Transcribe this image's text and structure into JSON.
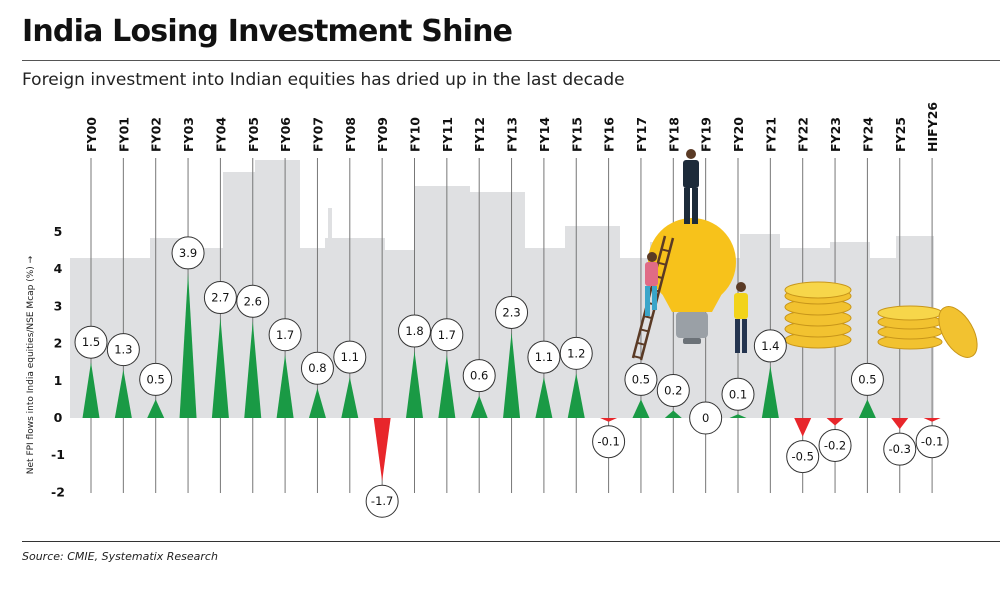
{
  "title": "India Losing Investment Shine",
  "subtitle": "Foreign investment into Indian equities has dried up in the last decade",
  "source": "Source: CMIE, Systematix Research",
  "chart_data": {
    "type": "bar",
    "ylabel": "Net FPI flows into India equities/NSE Mcap (%)",
    "ylabel_arrow": "→",
    "ylim": [
      -2,
      5
    ],
    "yticks": [
      -2,
      -1,
      0,
      1,
      2,
      3,
      4,
      5
    ],
    "yticklabels": [
      "-2",
      "-1",
      "0",
      "1",
      "2",
      "3",
      "4",
      "5"
    ],
    "categories": [
      "FY00",
      "FY01",
      "FY02",
      "FY03",
      "FY04",
      "FY05",
      "FY06",
      "FY07",
      "FY08",
      "FY09",
      "FY10",
      "FY11",
      "FY12",
      "FY13",
      "FY14",
      "FY15",
      "FY16",
      "FY17",
      "FY18",
      "FY19",
      "FY20",
      "FY21",
      "FY22",
      "FY23",
      "FY24",
      "FY25",
      "HIFY26"
    ],
    "values": [
      1.5,
      1.3,
      0.5,
      3.9,
      2.7,
      2.6,
      1.7,
      0.8,
      1.1,
      -1.7,
      1.8,
      1.7,
      0.6,
      2.3,
      1.1,
      1.2,
      -0.1,
      0.5,
      0.2,
      0,
      0.1,
      1.4,
      -0.5,
      -0.2,
      0.5,
      -0.3,
      -0.1
    ],
    "labels": [
      "1.5",
      "1.3",
      "0.5",
      "3.9",
      "2.7",
      "2.6",
      "1.7",
      "0.8",
      "1.1",
      "-1.7",
      "1.8",
      "1.7",
      "0.6",
      "2.3",
      "1.1",
      "1.2",
      "-0.1",
      "0.5",
      "0.2",
      "0",
      "0.1",
      "1.4",
      "-0.5",
      "-0.2",
      "0.5",
      "-0.3",
      "-0.1"
    ],
    "colors": {
      "positive": "#1a9a45",
      "negative": "#e8262b",
      "background": "#dfe0e2",
      "bulb": "#f7c21b",
      "coin": "#f2c230"
    }
  }
}
